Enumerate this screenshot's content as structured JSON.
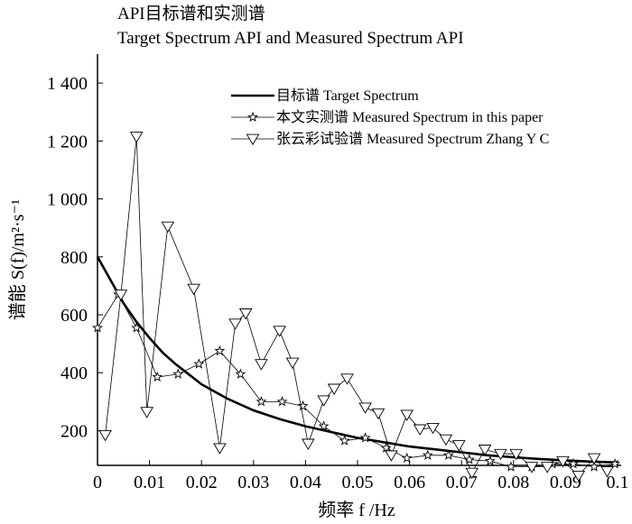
{
  "chart_data": {
    "type": "line",
    "title": "API目标谱和实测谱",
    "subtitle": "Target Spectrum API  and Measured Spectrum API",
    "xlabel": "频率 f /Hz",
    "ylabel": "谱能 S(f)/m²·s⁻¹",
    "xlim": [
      0,
      0.1
    ],
    "ylim": [
      80,
      1500
    ],
    "x_ticks": [
      0,
      0.01,
      0.02,
      0.03,
      0.04,
      0.05,
      0.06,
      0.07,
      0.08,
      0.09,
      0.1
    ],
    "x_tick_labels": [
      "0",
      "0.01",
      "0.02",
      "0.03",
      "0.04",
      "0.05",
      "0.06",
      "0.07",
      "0.08",
      "0.09",
      "0.1"
    ],
    "y_ticks": [
      200,
      400,
      600,
      800,
      1000,
      1200,
      1400
    ],
    "y_tick_labels": [
      "200",
      "400",
      "600",
      "800",
      "1 000",
      "1 200",
      "1 400"
    ],
    "grid": false,
    "legend_position": "top-right",
    "series": [
      {
        "name": "目标谱 Target Spectrum",
        "marker": "none",
        "x": [
          0,
          0.0025,
          0.005,
          0.0075,
          0.01,
          0.0125,
          0.015,
          0.0175,
          0.02,
          0.0225,
          0.025,
          0.03,
          0.035,
          0.04,
          0.045,
          0.05,
          0.055,
          0.06,
          0.065,
          0.07,
          0.075,
          0.08,
          0.085,
          0.09,
          0.095,
          0.1
        ],
        "values": [
          800,
          720,
          640,
          575,
          520,
          470,
          430,
          395,
          360,
          335,
          310,
          270,
          240,
          215,
          195,
          175,
          160,
          145,
          135,
          125,
          115,
          108,
          102,
          97,
          93,
          90
        ]
      },
      {
        "name": "本文实测谱 Measured Spectrum in this paper",
        "marker": "star",
        "x": [
          0,
          0.004,
          0.0075,
          0.0115,
          0.0155,
          0.0195,
          0.0235,
          0.0275,
          0.0315,
          0.0355,
          0.0395,
          0.0435,
          0.0475,
          0.0515,
          0.0555,
          0.0595,
          0.0635,
          0.0675,
          0.0715,
          0.0755,
          0.0795,
          0.0835,
          0.0875,
          0.0915,
          0.0955,
          0.0995
        ],
        "values": [
          555,
          670,
          555,
          385,
          395,
          430,
          475,
          395,
          300,
          300,
          285,
          215,
          165,
          175,
          140,
          105,
          115,
          115,
          100,
          95,
          75,
          75,
          85,
          85,
          75,
          85
        ]
      },
      {
        "name": "张云彩试验谱 Measured Spectrum Zhang Y C",
        "marker": "triangle-down",
        "x": [
          0.0015,
          0.0045,
          0.0075,
          0.0095,
          0.0135,
          0.0185,
          0.0235,
          0.0265,
          0.0285,
          0.0315,
          0.035,
          0.0375,
          0.0405,
          0.0435,
          0.0455,
          0.048,
          0.0515,
          0.054,
          0.0565,
          0.0595,
          0.062,
          0.0645,
          0.067,
          0.0695,
          0.072,
          0.0745,
          0.0775,
          0.0805,
          0.0835,
          0.0865,
          0.0895,
          0.0925,
          0.0955,
          0.098
        ],
        "values": [
          185,
          670,
          1215,
          265,
          905,
          690,
          140,
          570,
          605,
          430,
          545,
          435,
          155,
          305,
          345,
          380,
          280,
          260,
          115,
          255,
          205,
          210,
          170,
          150,
          55,
          135,
          120,
          120,
          75,
          75,
          95,
          45,
          105,
          60
        ]
      }
    ]
  }
}
